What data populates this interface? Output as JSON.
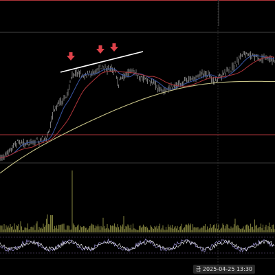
{
  "crosshair": {
    "day_marker": "금",
    "datetime": "2025-04-25",
    "time": "13:30"
  },
  "colors": {
    "background": "#000000",
    "candle": "#c8c8c8",
    "ma_fast": "#3b58a8",
    "ma_mid": "#b0353a",
    "ma_slow": "#c8c488",
    "hline": "#b0353a",
    "trendline": "#ffffff",
    "arrows": "#e0424a",
    "volume": "#7a7a3a",
    "osc_a": "#9d92d6",
    "osc_b": "#e6e6ea",
    "grid": "#222222"
  },
  "annotations": {
    "arrow_count": 3,
    "arrow_icon": "down-arrow-icon",
    "trendline": "resistance-trendline"
  }
}
